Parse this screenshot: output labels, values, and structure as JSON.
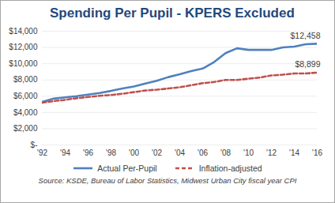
{
  "chart_data": {
    "type": "line",
    "title": "Spending Per Pupil - KPERS Excluded",
    "caption": "Source: KSDE, Bureau of Labor Statistics, Midwest Urban City fiscal year CPI",
    "x": [
      1992,
      1993,
      1994,
      1995,
      1996,
      1997,
      1998,
      1999,
      2000,
      2001,
      2002,
      2003,
      2004,
      2005,
      2006,
      2007,
      2008,
      2009,
      2010,
      2011,
      2012,
      2013,
      2014,
      2015,
      2016
    ],
    "series": [
      {
        "name": "Actual Per-Pupil",
        "color": "#4f81bd",
        "line_style": "solid",
        "values": [
          5300,
          5700,
          5850,
          6000,
          6200,
          6400,
          6650,
          6950,
          7200,
          7550,
          7900,
          8350,
          8700,
          9100,
          9400,
          10200,
          11300,
          11900,
          11700,
          11700,
          11700,
          12000,
          12100,
          12400,
          12458
        ]
      },
      {
        "name": "Inflation-adjusted",
        "color": "#c0504d",
        "line_style": "dashed",
        "values": [
          5200,
          5400,
          5550,
          5750,
          5900,
          6050,
          6150,
          6300,
          6500,
          6700,
          6800,
          6950,
          7100,
          7350,
          7600,
          7750,
          8000,
          8000,
          8150,
          8300,
          8550,
          8650,
          8800,
          8800,
          8899
        ]
      }
    ],
    "annotations": [
      {
        "text": "$12,458",
        "series": "Actual Per-Pupil"
      },
      {
        "text": "$8,899",
        "series": "Inflation-adjusted"
      }
    ],
    "xlim": [
      1992,
      2016
    ],
    "xticks": [
      {
        "value": 1992,
        "label": "'92"
      },
      {
        "value": 1994,
        "label": "'94"
      },
      {
        "value": 1996,
        "label": "'96"
      },
      {
        "value": 1998,
        "label": "'98"
      },
      {
        "value": 2000,
        "label": "'00"
      },
      {
        "value": 2002,
        "label": "'02"
      },
      {
        "value": 2004,
        "label": "'04"
      },
      {
        "value": 2006,
        "label": "'06"
      },
      {
        "value": 2008,
        "label": "'08"
      },
      {
        "value": 2010,
        "label": "'10"
      },
      {
        "value": 2012,
        "label": "'12"
      },
      {
        "value": 2014,
        "label": "'14"
      },
      {
        "value": 2016,
        "label": "'16"
      }
    ],
    "ylim": [
      0,
      14000
    ],
    "yticks": [
      {
        "value": 0,
        "label": "$-"
      },
      {
        "value": 2000,
        "label": "$2,000"
      },
      {
        "value": 4000,
        "label": "$4,000"
      },
      {
        "value": 6000,
        "label": "$6,000"
      },
      {
        "value": 8000,
        "label": "$8,000"
      },
      {
        "value": 10000,
        "label": "$10,000"
      },
      {
        "value": 12000,
        "label": "$12,000"
      },
      {
        "value": 14000,
        "label": "$14,000"
      }
    ],
    "grid": true,
    "legend": "bottom"
  }
}
